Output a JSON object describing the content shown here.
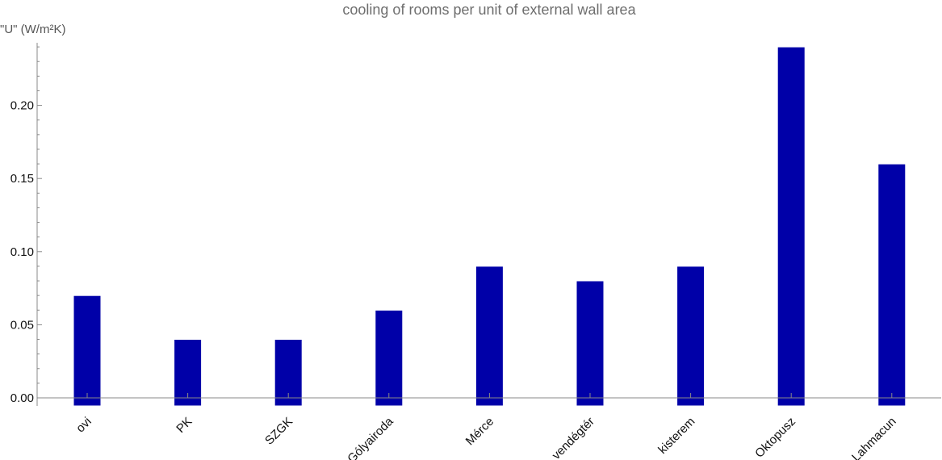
{
  "chart_data": {
    "type": "bar",
    "title": "cooling of rooms per unit of external wall area",
    "ylabel": "\"U\" (W/m²K)",
    "xlabel": "",
    "categories": [
      "ovi",
      "PK",
      "SZGK",
      "Gólyairoda",
      "Mérce",
      "vendégtér",
      "kisterem",
      "Oktopusz",
      "Lahmacun"
    ],
    "values": [
      0.07,
      0.04,
      0.04,
      0.06,
      0.09,
      0.08,
      0.09,
      0.24,
      0.16
    ],
    "ylim": [
      0,
      0.24
    ],
    "yticks": [
      0.0,
      0.05,
      0.1,
      0.15,
      0.2
    ],
    "ytick_labels": [
      "0.00",
      "0.05",
      "0.10",
      "0.15",
      "0.20"
    ],
    "bar_color": "#0000a8",
    "grid": false,
    "legend": "none"
  }
}
